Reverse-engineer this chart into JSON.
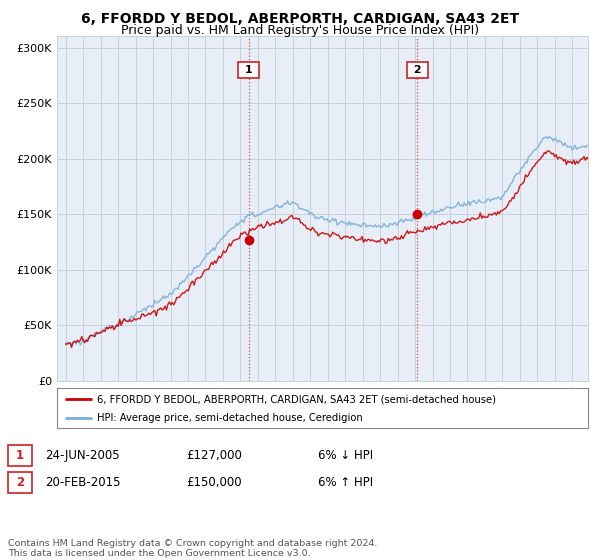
{
  "title": "6, FFORDD Y BEDOL, ABERPORTH, CARDIGAN, SA43 2ET",
  "subtitle": "Price paid vs. HM Land Registry's House Price Index (HPI)",
  "ylabel_ticks": [
    "£0",
    "£50K",
    "£100K",
    "£150K",
    "£200K",
    "£250K",
    "£300K"
  ],
  "ytick_values": [
    0,
    50000,
    100000,
    150000,
    200000,
    250000,
    300000
  ],
  "ylim": [
    0,
    310000
  ],
  "xlim_start": 1994.5,
  "xlim_end": 2024.9,
  "line1_color": "#cc0000",
  "line2_color": "#7aaed6",
  "vline_color": "#dd4444",
  "purchase1_date_x": 2005.48,
  "purchase1_price": 127000,
  "purchase2_date_x": 2015.13,
  "purchase2_price": 150000,
  "legend_line1": "6, FFORDD Y BEDOL, ABERPORTH, CARDIGAN, SA43 2ET (semi-detached house)",
  "legend_line2": "HPI: Average price, semi-detached house, Ceredigion",
  "table_row1": [
    "1",
    "24-JUN-2005",
    "£127,000",
    "6% ↓ HPI"
  ],
  "table_row2": [
    "2",
    "20-FEB-2015",
    "£150,000",
    "6% ↑ HPI"
  ],
  "footer": "Contains HM Land Registry data © Crown copyright and database right 2024.\nThis data is licensed under the Open Government Licence v3.0.",
  "bg_color": "#ffffff",
  "plot_bg_color": "#e8eef8",
  "grid_color": "#c8d0dc",
  "title_fontsize": 10,
  "subtitle_fontsize": 9
}
